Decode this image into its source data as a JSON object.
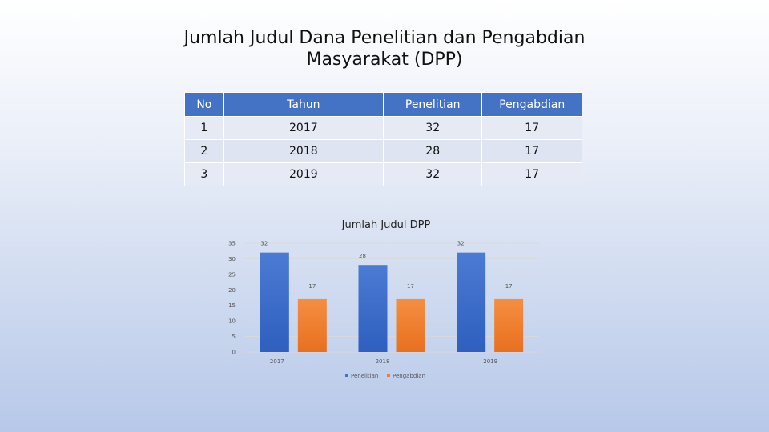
{
  "slide": {
    "title_line1": "Jumlah Judul Dana Penelitian dan Pengabdian",
    "title_line2": "Masyarakat (DPP)"
  },
  "table": {
    "headers": [
      "No",
      "Tahun",
      "Penelitian",
      "Pengabdian"
    ],
    "rows": [
      [
        "1",
        "2017",
        "32",
        "17"
      ],
      [
        "2",
        "2018",
        "28",
        "17"
      ],
      [
        "3",
        "2019",
        "32",
        "17"
      ]
    ]
  },
  "colors": {
    "header_bg": "#4472c4",
    "penelitian": "#4472c4",
    "pengabdian": "#ed7d31"
  },
  "chart_data": {
    "type": "bar",
    "title": "Jumlah Judul DPP",
    "categories": [
      "2017",
      "2018",
      "2019"
    ],
    "series": [
      {
        "name": "Penelitian",
        "values": [
          32,
          28,
          32
        ]
      },
      {
        "name": "Pengabdian",
        "values": [
          17,
          17,
          17
        ]
      }
    ],
    "ylim": [
      0,
      35
    ],
    "yticks": [
      0,
      5,
      10,
      15,
      20,
      25,
      30,
      35
    ],
    "grid": true,
    "legend": "bottom",
    "data_labels": true
  }
}
